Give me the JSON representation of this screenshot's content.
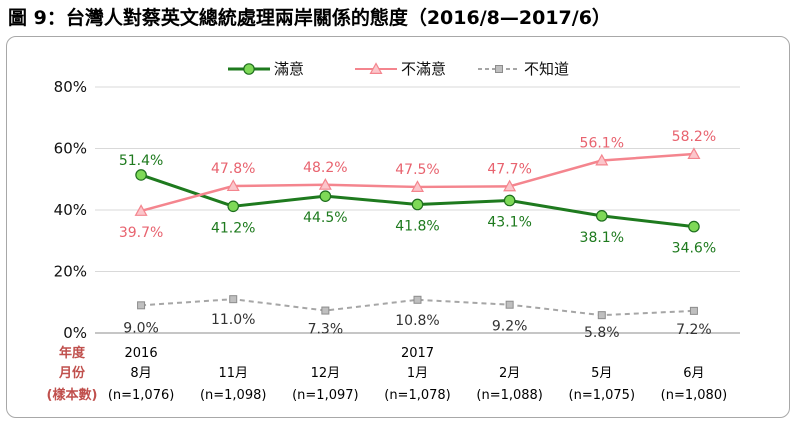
{
  "title": "圖 9：台灣人對蔡英文總統處理兩岸關係的態度（2016/8—2017/6）",
  "chart_data": {
    "type": "line",
    "ylim": [
      0,
      80
    ],
    "yticks": [
      0,
      20,
      40,
      60,
      80
    ],
    "ytick_labels": [
      "0%",
      "20%",
      "40%",
      "60%",
      "80%"
    ],
    "grid": true,
    "legend_position": "top-center",
    "row_labels": [
      "年度",
      "月份",
      "(樣本數)"
    ],
    "years": [
      "2016",
      "",
      "",
      "2017",
      "",
      "",
      ""
    ],
    "months": [
      "8月",
      "11月",
      "12月",
      "1月",
      "2月",
      "5月",
      "6月"
    ],
    "samples": [
      "(n=1,076)",
      "(n=1,098)",
      "(n=1,097)",
      "(n=1,078)",
      "(n=1,088)",
      "(n=1,075)",
      "(n=1,080)"
    ],
    "series": [
      {
        "name": "滿意",
        "color": "#1e7a1e",
        "marker": "circle",
        "values": [
          51.4,
          41.2,
          44.5,
          41.8,
          43.1,
          38.1,
          34.6
        ],
        "labels": [
          "51.4%",
          "41.2%",
          "44.5%",
          "41.8%",
          "43.1%",
          "38.1%",
          "34.6%"
        ]
      },
      {
        "name": "不滿意",
        "color": "#f4858e",
        "marker": "triangle",
        "values": [
          39.7,
          47.8,
          48.2,
          47.5,
          47.7,
          56.1,
          58.2
        ],
        "labels": [
          "39.7%",
          "47.8%",
          "48.2%",
          "47.5%",
          "47.7%",
          "56.1%",
          "58.2%"
        ]
      },
      {
        "name": "不知道",
        "color": "#a6a6a6",
        "marker": "square",
        "values": [
          9.0,
          11.0,
          7.3,
          10.8,
          9.2,
          5.8,
          7.2
        ],
        "labels": [
          "9.0%",
          "11.0%",
          "7.3%",
          "10.8%",
          "9.2%",
          "5.8%",
          "7.2%"
        ]
      }
    ]
  }
}
